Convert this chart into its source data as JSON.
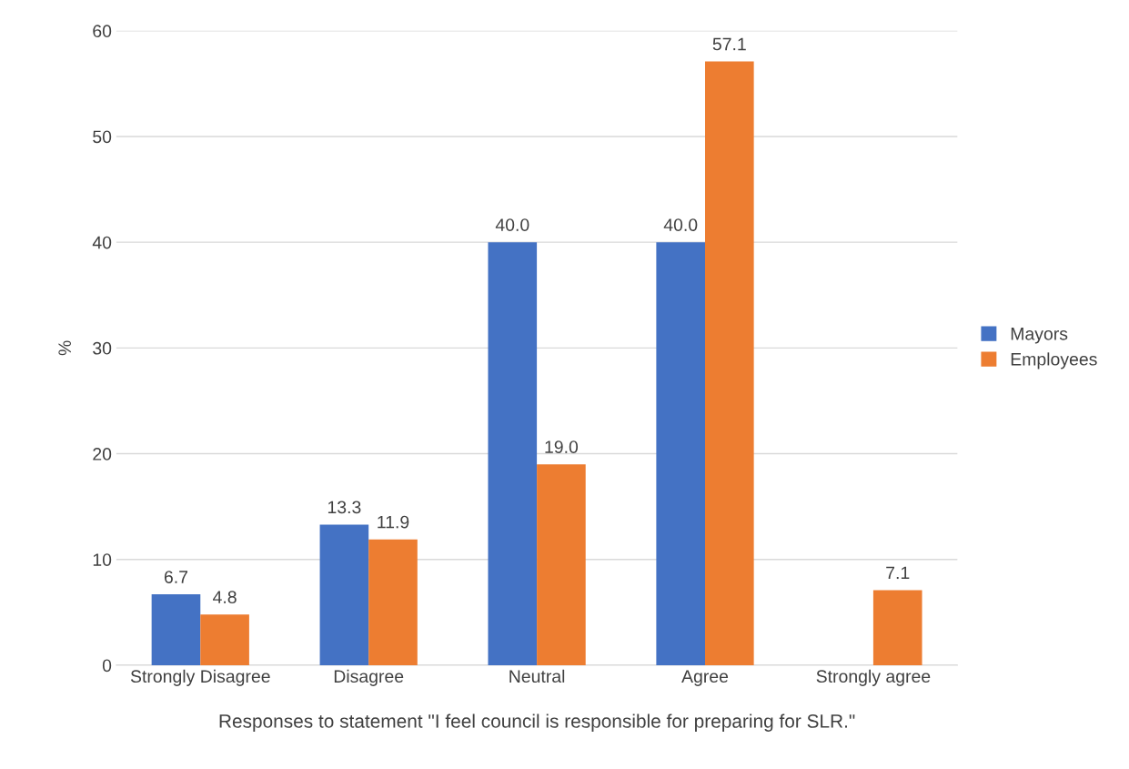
{
  "chart_data": {
    "type": "bar",
    "xlabel": "Responses to statement \"I feel council is responsible for preparing for SLR.\"",
    "ylabel": "%",
    "categories": [
      "Strongly Disagree",
      "Disagree",
      "Neutral",
      "Agree",
      "Strongly agree"
    ],
    "series": [
      {
        "name": "Mayors",
        "color": "#4472c4",
        "values": [
          6.7,
          13.3,
          40.0,
          40.0,
          null
        ],
        "value_labels": [
          "6.7",
          "13.3",
          "40.0",
          "40.0",
          null
        ]
      },
      {
        "name": "Employees",
        "color": "#ed7d31",
        "values": [
          4.8,
          11.9,
          19.0,
          57.1,
          7.1
        ],
        "value_labels": [
          "4.8",
          "11.9",
          "19.0",
          "57.1",
          "7.1"
        ]
      }
    ],
    "ylim": [
      0,
      60
    ],
    "yticks": [
      0,
      10,
      20,
      30,
      40,
      50,
      60
    ],
    "grid": "y",
    "legend": "right"
  }
}
